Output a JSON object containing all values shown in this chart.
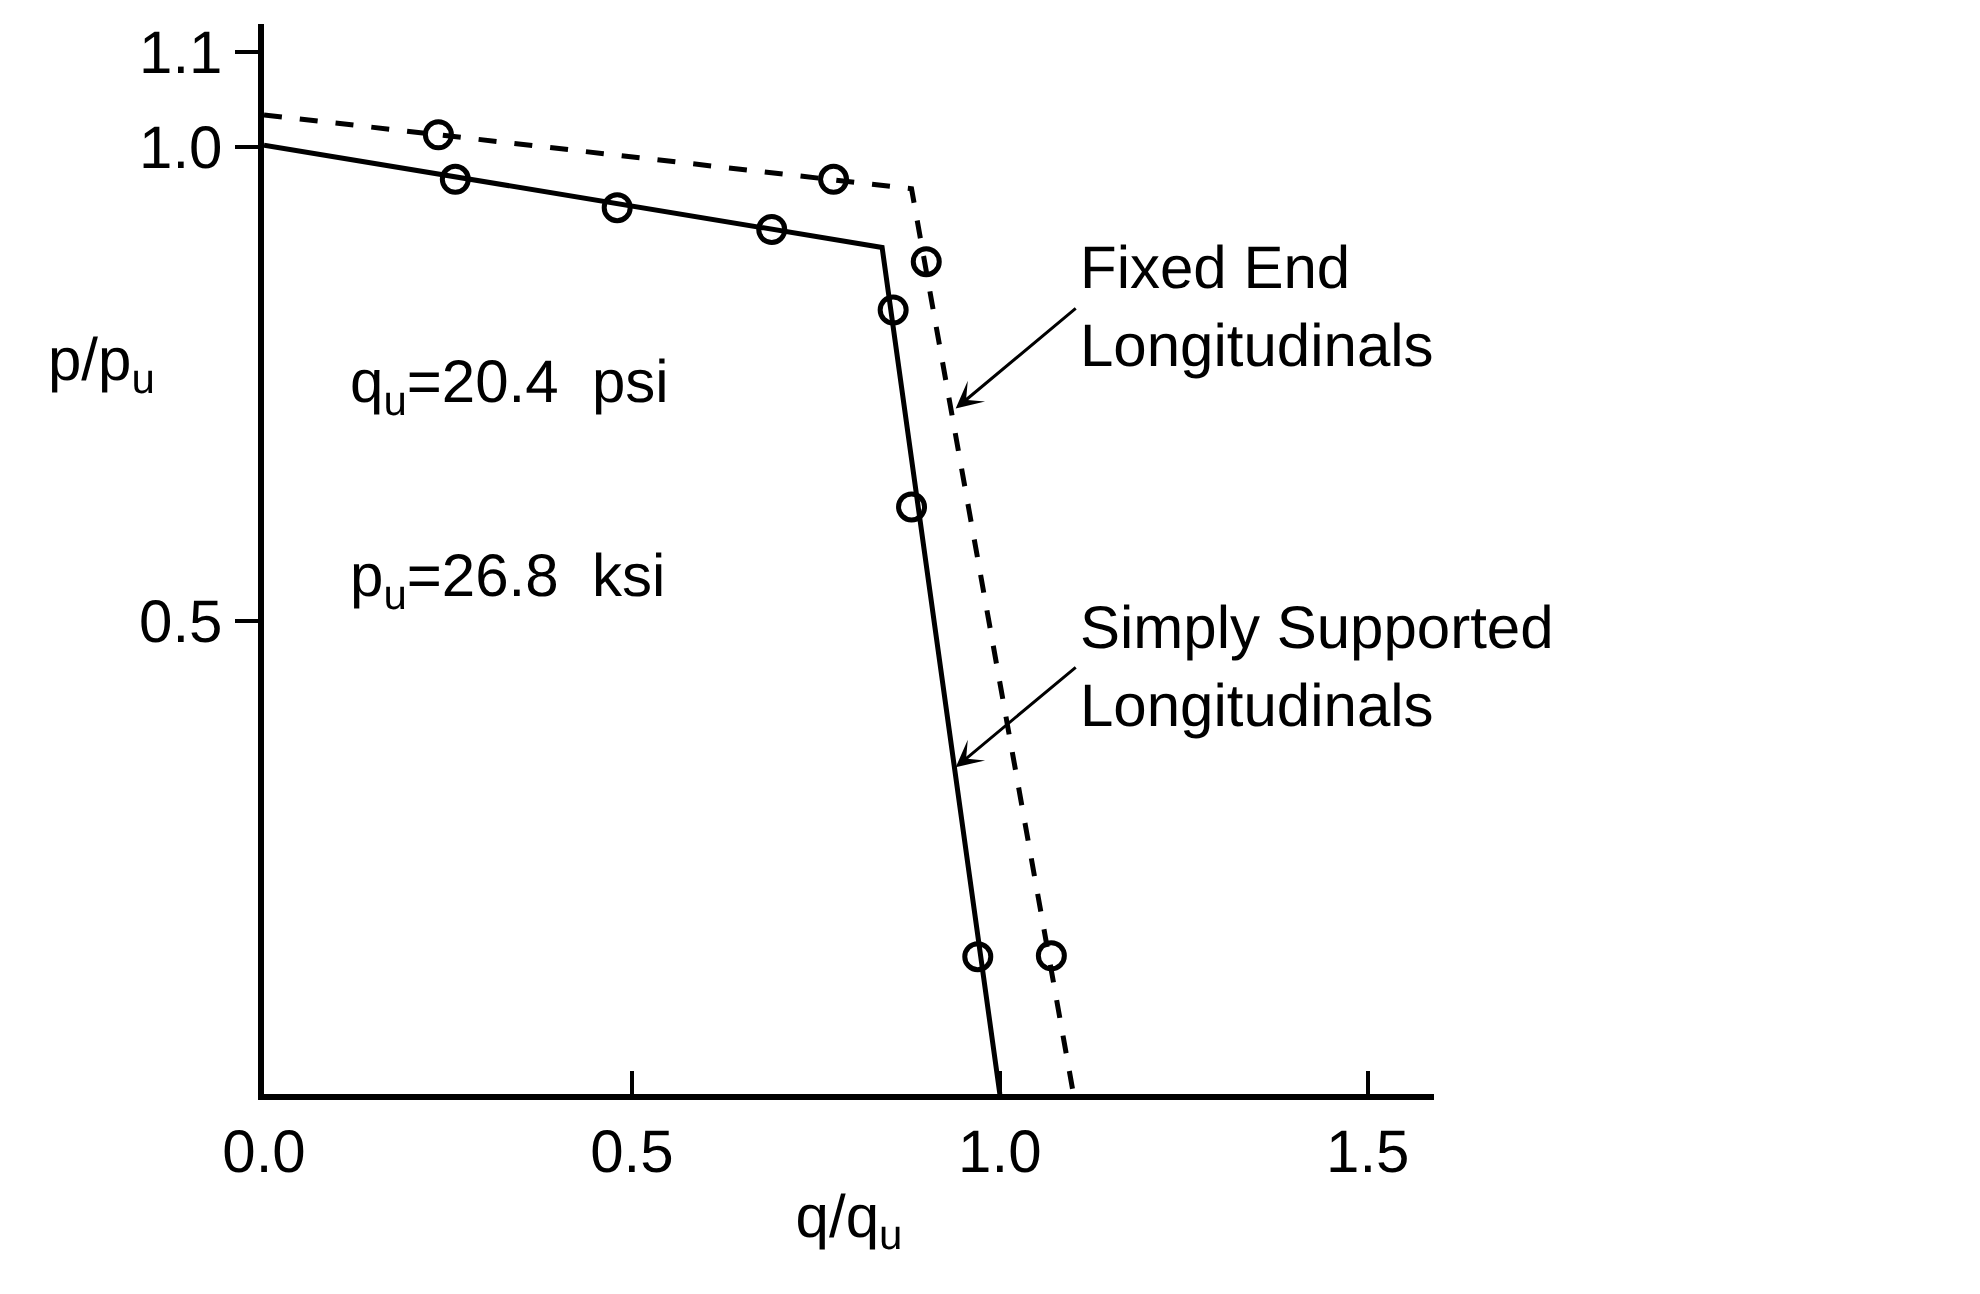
{
  "chart_data": {
    "type": "line",
    "xlabel": "q/q$_{u}$",
    "ylabel": "p/p$_{u}$",
    "series": [
      {
        "color": "#000000",
        "line_style": "dashed",
        "x": [
          0.0,
          0.88,
          1.1
        ],
        "values": [
          1.034,
          0.956,
          0.0
        ]
      },
      {
        "color": "#000000",
        "line_style": "solid",
        "x": [
          0.0,
          0.84,
          1.0
        ],
        "values": [
          1.002,
          0.894,
          0.0
        ]
      },
      {
        "type": "scatter",
        "color": "#000000",
        "marker": "circle",
        "x": [
          0.237,
          0.774,
          0.9,
          1.07
        ],
        "values": [
          1.013,
          0.966,
          0.879,
          0.146
        ]
      },
      {
        "type": "scatter",
        "color": "#000000",
        "marker": "circle",
        "x": [
          0.26,
          0.48,
          0.69,
          0.855,
          0.88,
          0.97
        ],
        "values": [
          0.966,
          0.936,
          0.913,
          0.828,
          0.62,
          0.145
        ]
      }
    ],
    "xlim": [
      0,
      1.59
    ],
    "ylim": [
      0,
      1.13
    ],
    "xticks": [
      {
        "value": 0,
        "label": "0.0"
      },
      0.5,
      {
        "value": 1,
        "label": "1.0"
      },
      1.5
    ],
    "yticks": [
      0.5,
      {
        "value": 1,
        "label": "1.0"
      },
      1.1
    ],
    "annotations": [
      {
        "text": "Fixed End Longitudinals",
        "x": 0.94,
        "y": 0.724
      },
      {
        "text": "Simply Supported Longitudinals",
        "x": 0.94,
        "y": 0.345
      },
      "q$_{u}$=20.4  psi",
      "p$_{u}$=26.8  ksi"
    ]
  }
}
